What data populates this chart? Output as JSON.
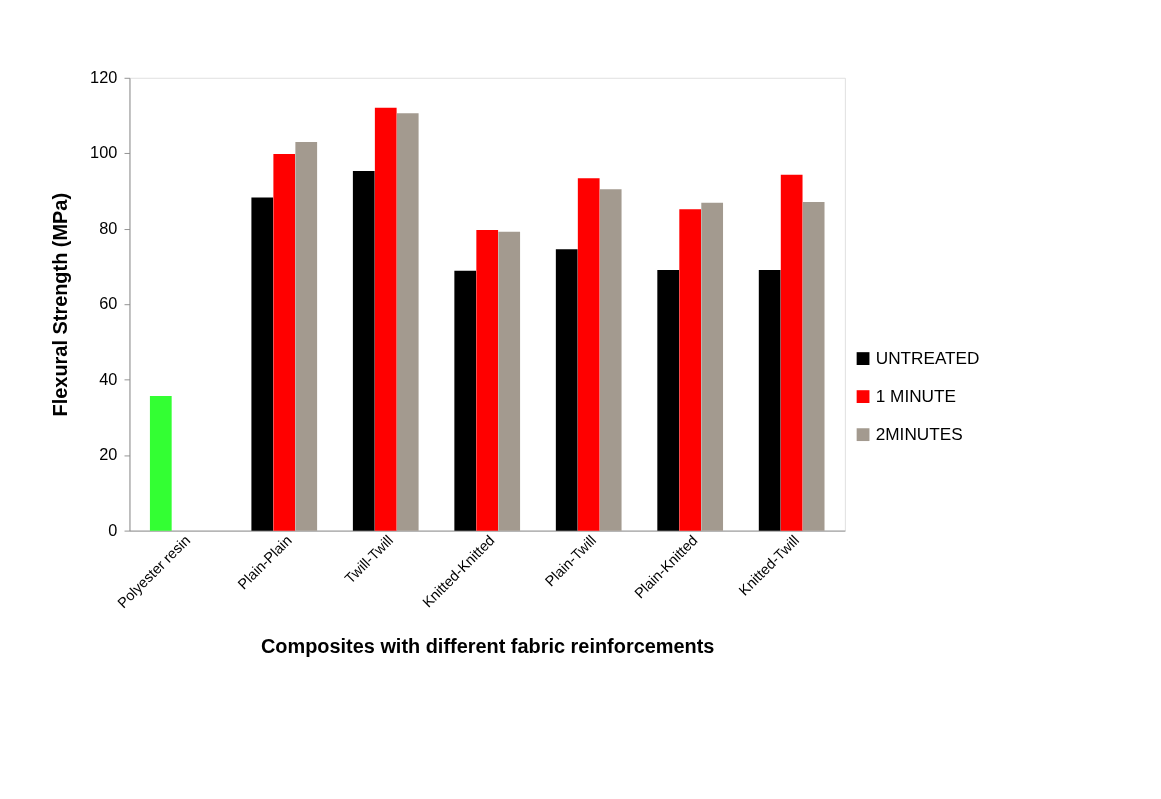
{
  "chart_data": {
    "type": "bar",
    "xlabel": "Composites with different fabric reinforcements",
    "ylabel": "Flexural Strength (MPa)",
    "categories": [
      "Polyester resin",
      "Plain-Plain",
      "Twill-Twill",
      "Knitted-Knitted",
      "Plain-Twill",
      "Plain-Knitted",
      "Knitted-Twill"
    ],
    "series": [
      {
        "name": "UNTREATED",
        "color": "#000000",
        "colors": [
          "#33ff33",
          "#000000",
          "#000000",
          "#000000",
          "#000000",
          "#000000",
          "#000000"
        ],
        "values": [
          35.7,
          88.3,
          95.3,
          68.9,
          74.6,
          69.1,
          69.1
        ]
      },
      {
        "name": "1 MINUTE",
        "color": "#ff0000",
        "values": [
          null,
          99.8,
          112.1,
          79.7,
          93.4,
          85.2,
          94.3
        ]
      },
      {
        "name": "2MINUTES",
        "color": "#a39a8f",
        "values": [
          null,
          103.0,
          110.6,
          79.2,
          90.5,
          86.9,
          87.1
        ]
      }
    ],
    "ylim": [
      0,
      120
    ],
    "yticks": [
      0,
      20,
      40,
      60,
      80,
      100,
      120
    ],
    "grid": false,
    "legend": "right"
  }
}
